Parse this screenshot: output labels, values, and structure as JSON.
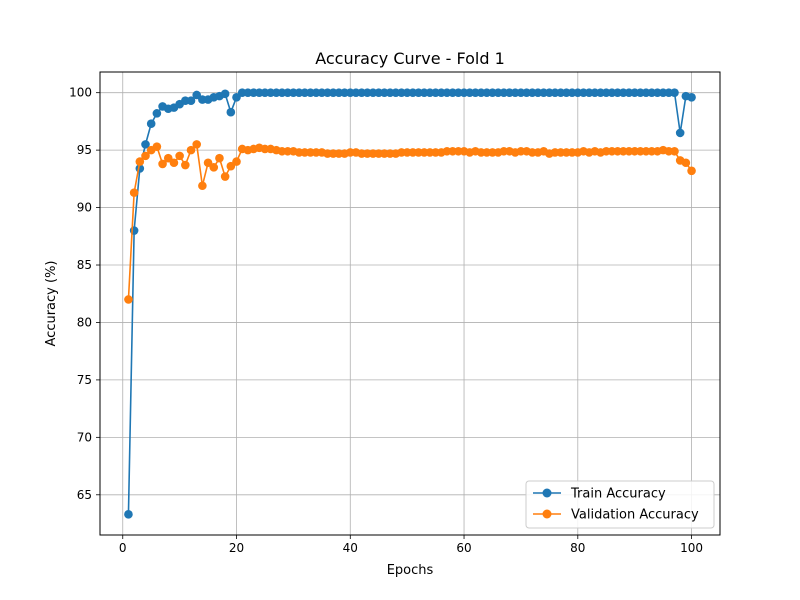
{
  "chart_data": {
    "type": "line",
    "title": "Accuracy Curve - Fold 1",
    "xlabel": "Epochs",
    "ylabel": "Accuracy (%)",
    "xlim": [
      -4,
      105
    ],
    "ylim": [
      61.5,
      101.8
    ],
    "xticks": [
      0,
      20,
      40,
      60,
      80,
      100
    ],
    "yticks": [
      65,
      70,
      75,
      80,
      85,
      90,
      95,
      100
    ],
    "grid": true,
    "legend_position": "lower-right",
    "x": [
      1,
      2,
      3,
      4,
      5,
      6,
      7,
      8,
      9,
      10,
      11,
      12,
      13,
      14,
      15,
      16,
      17,
      18,
      19,
      20,
      21,
      22,
      23,
      24,
      25,
      26,
      27,
      28,
      29,
      30,
      31,
      32,
      33,
      34,
      35,
      36,
      37,
      38,
      39,
      40,
      41,
      42,
      43,
      44,
      45,
      46,
      47,
      48,
      49,
      50,
      51,
      52,
      53,
      54,
      55,
      56,
      57,
      58,
      59,
      60,
      61,
      62,
      63,
      64,
      65,
      66,
      67,
      68,
      69,
      70,
      71,
      72,
      73,
      74,
      75,
      76,
      77,
      78,
      79,
      80,
      81,
      82,
      83,
      84,
      85,
      86,
      87,
      88,
      89,
      90,
      91,
      92,
      93,
      94,
      95,
      96,
      97,
      98,
      99,
      100
    ],
    "series": [
      {
        "name": "Train Accuracy",
        "color": "#1f77b4",
        "values": [
          63.3,
          88.0,
          93.4,
          95.5,
          97.3,
          98.2,
          98.8,
          98.6,
          98.7,
          99.0,
          99.3,
          99.3,
          99.8,
          99.4,
          99.4,
          99.6,
          99.7,
          99.9,
          98.3,
          99.6,
          100.0,
          100.0,
          100.0,
          100.0,
          100.0,
          100.0,
          100.0,
          100.0,
          100.0,
          100.0,
          100.0,
          100.0,
          100.0,
          100.0,
          100.0,
          100.0,
          100.0,
          100.0,
          100.0,
          100.0,
          100.0,
          100.0,
          100.0,
          100.0,
          100.0,
          100.0,
          100.0,
          100.0,
          100.0,
          100.0,
          100.0,
          100.0,
          100.0,
          100.0,
          100.0,
          100.0,
          100.0,
          100.0,
          100.0,
          100.0,
          100.0,
          100.0,
          100.0,
          100.0,
          100.0,
          100.0,
          100.0,
          100.0,
          100.0,
          100.0,
          100.0,
          100.0,
          100.0,
          100.0,
          100.0,
          100.0,
          100.0,
          100.0,
          100.0,
          100.0,
          100.0,
          100.0,
          100.0,
          100.0,
          100.0,
          100.0,
          100.0,
          100.0,
          100.0,
          100.0,
          100.0,
          100.0,
          100.0,
          100.0,
          100.0,
          100.0,
          100.0,
          96.5,
          99.7,
          99.6
        ]
      },
      {
        "name": "Validation Accuracy",
        "color": "#ff7f0e",
        "values": [
          82.0,
          91.3,
          94.0,
          94.5,
          95.0,
          95.3,
          93.8,
          94.3,
          93.9,
          94.5,
          93.7,
          95.0,
          95.5,
          91.9,
          93.9,
          93.5,
          94.3,
          92.7,
          93.6,
          94.0,
          95.1,
          95.0,
          95.1,
          95.2,
          95.1,
          95.1,
          95.0,
          94.9,
          94.9,
          94.9,
          94.8,
          94.8,
          94.8,
          94.8,
          94.8,
          94.7,
          94.7,
          94.7,
          94.7,
          94.8,
          94.8,
          94.7,
          94.7,
          94.7,
          94.7,
          94.7,
          94.7,
          94.7,
          94.8,
          94.8,
          94.8,
          94.8,
          94.8,
          94.8,
          94.8,
          94.8,
          94.9,
          94.9,
          94.9,
          94.9,
          94.8,
          94.9,
          94.8,
          94.8,
          94.8,
          94.8,
          94.9,
          94.9,
          94.8,
          94.9,
          94.9,
          94.8,
          94.8,
          94.9,
          94.7,
          94.8,
          94.8,
          94.8,
          94.8,
          94.8,
          94.9,
          94.8,
          94.9,
          94.8,
          94.9,
          94.9,
          94.9,
          94.9,
          94.9,
          94.9,
          94.9,
          94.9,
          94.9,
          94.9,
          95.0,
          94.9,
          94.9,
          94.1,
          93.9,
          93.2
        ]
      }
    ]
  }
}
